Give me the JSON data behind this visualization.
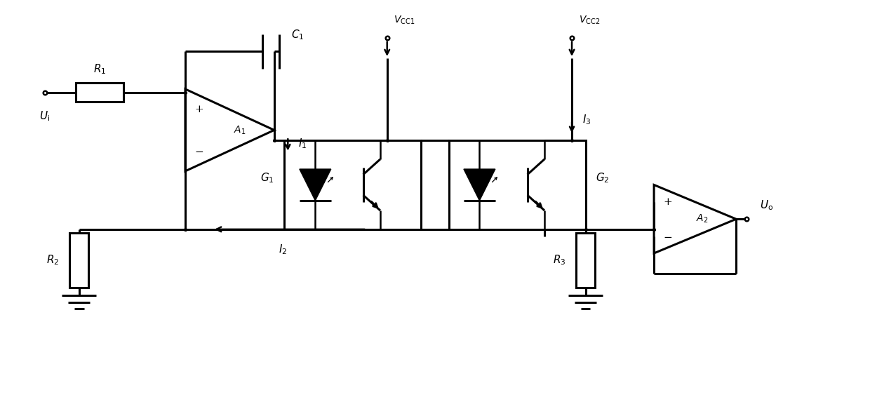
{
  "bg_color": "#ffffff",
  "line_color": "#000000",
  "fig_width": 12.4,
  "fig_height": 5.63,
  "dpi": 100
}
